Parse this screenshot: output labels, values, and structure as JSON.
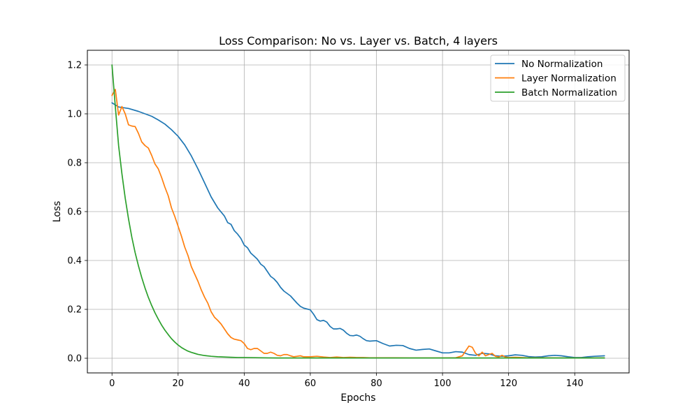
{
  "chart_data": {
    "type": "line",
    "title": "Loss Comparison: No vs. Layer vs. Batch, 4 layers",
    "xlabel": "Epochs",
    "ylabel": "Loss",
    "xlim": [
      -7.45,
      156.45
    ],
    "ylim": [
      -0.06,
      1.26
    ],
    "xticks": [
      0,
      20,
      40,
      60,
      80,
      100,
      120,
      140
    ],
    "yticks": [
      0.0,
      0.2,
      0.4,
      0.6,
      0.8,
      1.0,
      1.2
    ],
    "ytick_format": "fixed1",
    "grid": true,
    "legend_position": "top-right",
    "series": [
      {
        "name": "No Normalization",
        "color": "#1f77b4",
        "x": [
          0,
          2,
          5,
          8,
          10,
          12,
          14,
          16,
          18,
          20,
          22,
          24,
          26,
          28,
          30,
          32,
          34,
          35,
          36,
          37,
          38,
          39,
          40,
          41,
          42,
          43,
          44,
          45,
          46,
          47,
          48,
          49,
          50,
          51,
          52,
          53,
          54,
          55,
          56,
          57,
          58,
          60,
          61,
          62,
          63,
          64,
          65,
          66,
          67,
          68,
          69,
          70,
          71,
          72,
          73,
          74,
          75,
          76,
          77,
          78,
          80,
          82,
          84,
          86,
          88,
          90,
          92,
          94,
          96,
          98,
          100,
          102,
          104,
          106,
          108,
          110,
          112,
          114,
          116,
          118,
          120,
          122,
          124,
          126,
          128,
          130,
          132,
          134,
          136,
          138,
          140,
          142,
          144,
          146,
          149
        ],
        "y": [
          1.045,
          1.028,
          1.022,
          1.01,
          1.0,
          0.99,
          0.975,
          0.958,
          0.935,
          0.908,
          0.873,
          0.828,
          0.775,
          0.718,
          0.66,
          0.615,
          0.582,
          0.555,
          0.548,
          0.522,
          0.508,
          0.49,
          0.463,
          0.452,
          0.43,
          0.418,
          0.405,
          0.385,
          0.375,
          0.355,
          0.335,
          0.325,
          0.31,
          0.29,
          0.275,
          0.265,
          0.255,
          0.24,
          0.225,
          0.212,
          0.205,
          0.198,
          0.18,
          0.158,
          0.152,
          0.155,
          0.148,
          0.13,
          0.12,
          0.12,
          0.122,
          0.115,
          0.102,
          0.093,
          0.092,
          0.095,
          0.09,
          0.08,
          0.072,
          0.07,
          0.072,
          0.06,
          0.05,
          0.053,
          0.052,
          0.04,
          0.033,
          0.036,
          0.038,
          0.03,
          0.022,
          0.022,
          0.027,
          0.025,
          0.015,
          0.012,
          0.02,
          0.018,
          0.01,
          0.008,
          0.01,
          0.014,
          0.012,
          0.007,
          0.005,
          0.006,
          0.01,
          0.012,
          0.01,
          0.006,
          0.003,
          0.003,
          0.006,
          0.008,
          0.01
        ]
      },
      {
        "name": "Layer Normalization",
        "color": "#ff7f0e",
        "x": [
          0,
          1,
          2,
          3,
          4,
          5,
          6,
          7,
          8,
          9,
          10,
          11,
          12,
          13,
          14,
          15,
          16,
          17,
          18,
          19,
          20,
          21,
          22,
          23,
          24,
          25,
          26,
          27,
          28,
          29,
          30,
          31,
          32,
          33,
          34,
          35,
          36,
          37,
          38,
          39,
          40,
          41,
          42,
          43,
          44,
          45,
          46,
          47,
          48,
          49,
          50,
          51,
          52,
          53,
          54,
          55,
          56,
          57,
          58,
          60,
          62,
          64,
          66,
          68,
          70,
          72,
          74,
          76,
          78,
          80,
          85,
          90,
          95,
          100,
          104,
          106,
          107,
          108,
          109,
          110,
          111,
          112,
          113,
          114,
          115,
          116,
          117,
          118,
          119,
          120,
          122,
          124,
          126,
          130,
          135,
          140,
          145,
          149
        ],
        "y": [
          1.075,
          1.1,
          0.995,
          1.03,
          1.0,
          0.955,
          0.95,
          0.948,
          0.92,
          0.885,
          0.87,
          0.86,
          0.83,
          0.795,
          0.775,
          0.74,
          0.7,
          0.665,
          0.615,
          0.58,
          0.54,
          0.5,
          0.455,
          0.42,
          0.375,
          0.345,
          0.315,
          0.28,
          0.25,
          0.225,
          0.19,
          0.168,
          0.155,
          0.14,
          0.12,
          0.1,
          0.085,
          0.078,
          0.075,
          0.072,
          0.06,
          0.04,
          0.035,
          0.04,
          0.04,
          0.03,
          0.02,
          0.02,
          0.025,
          0.02,
          0.012,
          0.01,
          0.015,
          0.015,
          0.01,
          0.006,
          0.008,
          0.01,
          0.006,
          0.006,
          0.008,
          0.005,
          0.003,
          0.005,
          0.003,
          0.004,
          0.003,
          0.003,
          0.002,
          0.002,
          0.002,
          0.001,
          0.001,
          0.001,
          0.002,
          0.01,
          0.03,
          0.05,
          0.045,
          0.02,
          0.01,
          0.025,
          0.01,
          0.015,
          0.02,
          0.008,
          0.005,
          0.012,
          0.005,
          0.003,
          0.004,
          0.003,
          0.002,
          0.002,
          0.001,
          0.001,
          0.001,
          0.001
        ]
      },
      {
        "name": "Batch Normalization",
        "color": "#2ca02c",
        "x": [
          0,
          1,
          2,
          3,
          4,
          5,
          6,
          7,
          8,
          9,
          10,
          11,
          12,
          13,
          14,
          15,
          16,
          17,
          18,
          19,
          20,
          21,
          22,
          23,
          24,
          25,
          26,
          28,
          30,
          32,
          34,
          36,
          38,
          40,
          45,
          50,
          55,
          60,
          70,
          80,
          90,
          100,
          110,
          120,
          130,
          140,
          149
        ],
        "y": [
          1.2,
          1.03,
          0.87,
          0.755,
          0.655,
          0.57,
          0.495,
          0.432,
          0.378,
          0.33,
          0.287,
          0.249,
          0.216,
          0.186,
          0.16,
          0.136,
          0.115,
          0.097,
          0.08,
          0.066,
          0.054,
          0.044,
          0.036,
          0.029,
          0.024,
          0.02,
          0.016,
          0.011,
          0.008,
          0.006,
          0.005,
          0.004,
          0.003,
          0.003,
          0.002,
          0.001,
          0.001,
          0.001,
          0.001,
          0.001,
          0.001,
          0.001,
          0.001,
          0.001,
          0.001,
          0.001,
          0.001
        ]
      }
    ]
  }
}
